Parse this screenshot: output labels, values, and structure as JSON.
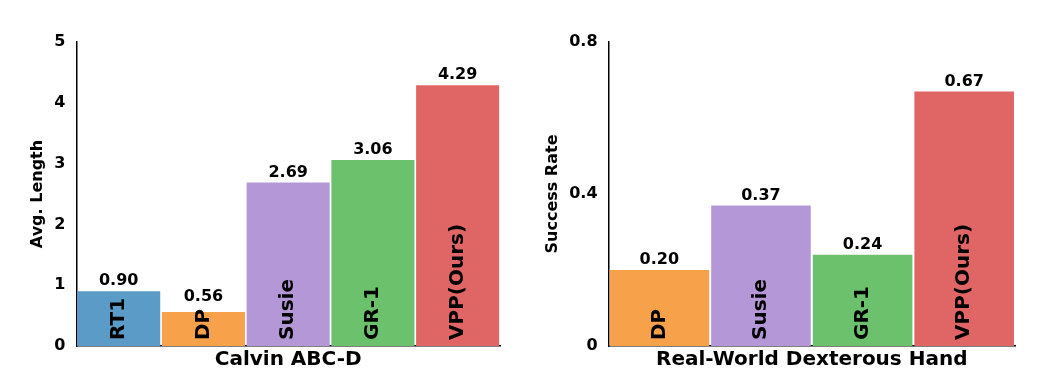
{
  "chart_data": [
    {
      "type": "bar",
      "x_label": "Calvin ABC-D",
      "y_label": "Avg. Length",
      "categories": [
        "RT1",
        "DP",
        "Susie",
        "GR-1",
        "VPP(Ours)"
      ],
      "values": [
        0.9,
        0.56,
        2.69,
        3.06,
        4.29
      ],
      "value_labels": [
        "0.90",
        "0.56",
        "2.69",
        "3.06",
        "4.29"
      ],
      "colors": [
        "#5b9bc8",
        "#f7a24b",
        "#b397d6",
        "#6cc26c",
        "#e06666"
      ],
      "ylim": [
        0,
        5
      ],
      "yticks": [
        0,
        1,
        2,
        3,
        4,
        5
      ],
      "grid": false,
      "data_labels": true,
      "tick_labels": "y"
    },
    {
      "type": "bar",
      "x_label": "Real-World Dexterous Hand",
      "y_label": "Success Rate",
      "categories": [
        "DP",
        "Susie",
        "GR-1",
        "VPP(Ours)"
      ],
      "values": [
        0.2,
        0.37,
        0.24,
        0.67
      ],
      "value_labels": [
        "0.20",
        "0.37",
        "0.24",
        "0.67"
      ],
      "colors": [
        "#f7a24b",
        "#b397d6",
        "#6cc26c",
        "#e06666"
      ],
      "ylim": [
        0,
        0.8
      ],
      "yticks": [
        0,
        0.4,
        0.8
      ],
      "grid": false,
      "data_labels": true,
      "tick_labels": "y"
    }
  ]
}
